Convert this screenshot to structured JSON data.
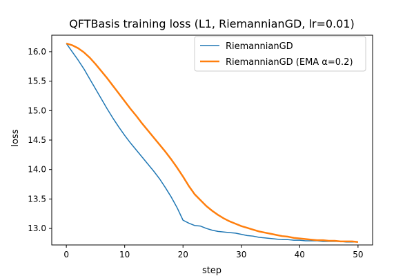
{
  "chart_data": {
    "type": "line",
    "title": "QFTBasis training loss (L1, RiemannianGD, lr=0.01)",
    "xlabel": "step",
    "ylabel": "loss",
    "xlim": [
      -2.5,
      52.5
    ],
    "ylim": [
      12.72,
      16.28
    ],
    "xticks": [
      0,
      10,
      20,
      30,
      40,
      50
    ],
    "yticks": [
      13.0,
      13.5,
      14.0,
      14.5,
      15.0,
      15.5,
      16.0
    ],
    "xtick_labels": [
      "0",
      "10",
      "20",
      "30",
      "40",
      "50"
    ],
    "ytick_labels": [
      "13.0",
      "13.5",
      "14.0",
      "14.5",
      "15.0",
      "15.5",
      "16.0"
    ],
    "grid": false,
    "legend_position": "top-right",
    "x": [
      0,
      1,
      2,
      3,
      4,
      5,
      6,
      7,
      8,
      9,
      10,
      11,
      12,
      13,
      14,
      15,
      16,
      17,
      18,
      19,
      20,
      21,
      22,
      23,
      24,
      25,
      26,
      27,
      28,
      29,
      30,
      31,
      32,
      33,
      34,
      35,
      36,
      37,
      38,
      39,
      40,
      41,
      42,
      43,
      44,
      45,
      46,
      47,
      48,
      49,
      50
    ],
    "series": [
      {
        "name": "RiemannianGD",
        "color": "#1f77b4",
        "values": [
          16.14,
          16.0,
          15.86,
          15.71,
          15.54,
          15.37,
          15.2,
          15.03,
          14.87,
          14.72,
          14.58,
          14.45,
          14.33,
          14.21,
          14.09,
          13.97,
          13.84,
          13.69,
          13.53,
          13.35,
          13.14,
          13.09,
          13.05,
          13.04,
          13.0,
          12.97,
          12.95,
          12.94,
          12.93,
          12.92,
          12.9,
          12.88,
          12.87,
          12.85,
          12.84,
          12.83,
          12.82,
          12.81,
          12.81,
          12.8,
          12.8,
          12.79,
          12.79,
          12.79,
          12.78,
          12.78,
          12.78,
          12.78,
          12.77,
          12.77,
          12.77
        ]
      },
      {
        "name": "RiemannianGD (EMA α=0.2)",
        "color": "#ff7f0e",
        "values": [
          16.14,
          16.11,
          16.06,
          15.99,
          15.9,
          15.79,
          15.67,
          15.55,
          15.42,
          15.29,
          15.16,
          15.03,
          14.91,
          14.78,
          14.66,
          14.54,
          14.42,
          14.3,
          14.17,
          14.03,
          13.88,
          13.72,
          13.58,
          13.48,
          13.38,
          13.3,
          13.23,
          13.17,
          13.12,
          13.08,
          13.04,
          13.01,
          12.98,
          12.95,
          12.93,
          12.91,
          12.89,
          12.87,
          12.86,
          12.84,
          12.83,
          12.82,
          12.81,
          12.8,
          12.8,
          12.79,
          12.79,
          12.78,
          12.78,
          12.78,
          12.77
        ]
      }
    ]
  }
}
